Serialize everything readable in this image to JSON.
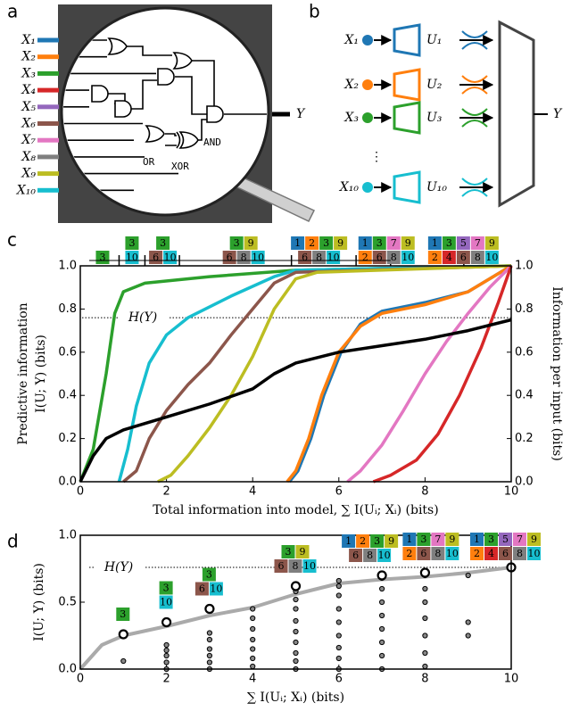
{
  "panel_labels": [
    "a",
    "b",
    "c",
    "d"
  ],
  "inputs": [
    {
      "label": "X₁",
      "color": "#1f77b4"
    },
    {
      "label": "X₂",
      "color": "#ff7f0e"
    },
    {
      "label": "X₃",
      "color": "#2ca02c"
    },
    {
      "label": "X₄",
      "color": "#d62728"
    },
    {
      "label": "X₅",
      "color": "#9467bd"
    },
    {
      "label": "X₆",
      "color": "#8c564b"
    },
    {
      "label": "X₇",
      "color": "#e377c2"
    },
    {
      "label": "X₈",
      "color": "#7f7f7f"
    },
    {
      "label": "X₉",
      "color": "#bcbd22"
    },
    {
      "label": "X₁₀",
      "color": "#17becf"
    }
  ],
  "diagram_a": {
    "gates": {
      "and": "AND",
      "or": "OR",
      "xor": "XOR"
    },
    "output": "Y"
  },
  "diagram_b": {
    "rows": [
      {
        "x": "X₁",
        "u": "U₁",
        "color": "#1f77b4"
      },
      {
        "x": "X₂",
        "u": "U₂",
        "color": "#ff7f0e"
      },
      {
        "x": "X₃",
        "u": "U₃",
        "color": "#2ca02c"
      },
      {
        "x": "X₁₀",
        "u": "U₁₀",
        "color": "#17becf"
      }
    ],
    "ellipsis": "⋮",
    "output": "Y"
  },
  "chart_data": [
    {
      "type": "line",
      "xlabel": "Total information into model, ∑ I(Uᵢ; Xᵢ) (bits)",
      "ylabel": [
        "Predictive information",
        "I(U; Y) (bits)"
      ],
      "y2label": "Information per input (bits)",
      "xlim": [
        0,
        10
      ],
      "ylim": [
        0,
        1
      ],
      "y2lim": [
        0,
        1
      ],
      "xticks": [
        0,
        2,
        4,
        6,
        8,
        10
      ],
      "yticks": [
        {
          "value": 0,
          "label": "0.0"
        },
        0.2,
        0.4,
        0.6,
        0.8,
        {
          "value": 1,
          "label": "1.0"
        }
      ],
      "y2ticks": [
        {
          "value": 0,
          "label": "0.0"
        },
        0.2,
        0.4,
        0.6,
        0.8,
        {
          "value": 1,
          "label": "1.0"
        }
      ],
      "hline": {
        "value": 0.76,
        "label": "H(Y)"
      },
      "series": [
        {
          "color": "#2ca02c",
          "x": [
            0,
            0.3,
            0.6,
            0.8,
            1.0,
            1.5,
            3,
            5,
            10
          ],
          "values": [
            0,
            0.15,
            0.5,
            0.78,
            0.88,
            0.92,
            0.95,
            0.98,
            1
          ]
        },
        {
          "color": "#17becf",
          "x": [
            0.9,
            1.1,
            1.3,
            1.6,
            2,
            2.5,
            3.5,
            4.5,
            5,
            10
          ],
          "values": [
            0,
            0.15,
            0.35,
            0.55,
            0.68,
            0.76,
            0.86,
            0.95,
            0.98,
            1
          ]
        },
        {
          "color": "#8c564b",
          "x": [
            1.0,
            1.3,
            1.6,
            2,
            2.5,
            3,
            3.5,
            4,
            4.5,
            5,
            10
          ],
          "values": [
            0,
            0.05,
            0.2,
            0.33,
            0.45,
            0.55,
            0.68,
            0.8,
            0.92,
            0.97,
            1
          ]
        },
        {
          "color": "#bcbd22",
          "x": [
            1.8,
            2.1,
            2.5,
            3,
            3.5,
            4,
            4.5,
            5,
            5.5,
            10
          ],
          "values": [
            0,
            0.03,
            0.12,
            0.25,
            0.4,
            0.58,
            0.8,
            0.94,
            0.97,
            1
          ]
        },
        {
          "color": "#1f77b4",
          "x": [
            4.85,
            5.05,
            5.35,
            5.65,
            6.05,
            6.5,
            7,
            8,
            9,
            10
          ],
          "values": [
            0,
            0.05,
            0.2,
            0.4,
            0.6,
            0.73,
            0.79,
            0.83,
            0.88,
            1
          ]
        },
        {
          "color": "#ff7f0e",
          "x": [
            4.8,
            5.0,
            5.3,
            5.6,
            6,
            6.5,
            7,
            8,
            9,
            10
          ],
          "values": [
            0,
            0.05,
            0.2,
            0.4,
            0.6,
            0.72,
            0.78,
            0.82,
            0.88,
            1
          ]
        },
        {
          "color": "#e377c2",
          "x": [
            6.2,
            6.5,
            7,
            7.5,
            8,
            8.5,
            9,
            9.5,
            10
          ],
          "values": [
            0,
            0.05,
            0.17,
            0.33,
            0.5,
            0.65,
            0.78,
            0.9,
            1
          ]
        },
        {
          "color": "#d62728",
          "x": [
            6.8,
            7.2,
            7.8,
            8.3,
            8.8,
            9.3,
            9.7,
            10
          ],
          "values": [
            0,
            0.03,
            0.1,
            0.22,
            0.4,
            0.62,
            0.83,
            1
          ]
        },
        {
          "color": "#000000",
          "x": [
            0,
            0.3,
            0.6,
            1,
            2,
            3,
            4,
            4.5,
            5,
            6,
            7,
            8,
            9,
            10
          ],
          "values": [
            0,
            0.12,
            0.2,
            0.24,
            0.3,
            0.36,
            0.43,
            0.5,
            0.55,
            0.6,
            0.63,
            0.66,
            0.7,
            0.75
          ]
        }
      ],
      "badge_groups": [
        {
          "x": 0.9,
          "rows": [
            [
              3
            ]
          ]
        },
        {
          "x": 1.5,
          "rows": [
            [
              3
            ],
            [
              10
            ]
          ]
        },
        {
          "x": 2.3,
          "rows": [
            [
              3
            ],
            [
              6,
              10
            ]
          ]
        },
        {
          "x": 4.9,
          "rows": [
            [
              3,
              9
            ],
            [
              6,
              8,
              10
            ]
          ]
        },
        {
          "x": 6.4,
          "rows": [
            [
              1,
              2,
              3,
              9
            ],
            [
              6,
              8,
              10
            ]
          ]
        },
        {
          "x": 7.2,
          "rows": [
            [
              1,
              3,
              7,
              9
            ],
            [
              2,
              6,
              8,
              10
            ]
          ]
        },
        {
          "x": 8.9,
          "rows": [
            [
              1,
              3,
              5,
              7,
              9
            ],
            [
              2,
              4,
              6,
              8,
              10
            ]
          ]
        }
      ]
    },
    {
      "type": "scatter",
      "xlabel": "∑ I(Uᵢ; Xᵢ) (bits)",
      "ylabel": "I(U; Y) (bits)",
      "xlim": [
        0,
        10
      ],
      "ylim": [
        0,
        1
      ],
      "xticks": [
        0,
        2,
        4,
        6,
        8,
        10
      ],
      "yticks": [
        {
          "value": 0,
          "label": "0.0"
        },
        0.5,
        {
          "value": 1,
          "label": "1.0"
        }
      ],
      "hline": {
        "value": 0.76,
        "label": "H(Y)"
      },
      "series": [
        {
          "marker": "line",
          "color": "#aaaaaa",
          "x": [
            0,
            0.5,
            1,
            2,
            3,
            4,
            5,
            6,
            7,
            8,
            9,
            10
          ],
          "values": [
            0,
            0.18,
            0.25,
            0.32,
            0.4,
            0.46,
            0.56,
            0.64,
            0.67,
            0.69,
            0.72,
            0.76
          ]
        },
        {
          "marker": "dot",
          "color": "#000000",
          "x": [
            1,
            2,
            2,
            2,
            2,
            2,
            3,
            3,
            3,
            3,
            3,
            3,
            4,
            4,
            4,
            4,
            4,
            4,
            4,
            5,
            5,
            5,
            5,
            5,
            5,
            5,
            5,
            5,
            6,
            6,
            6,
            6,
            6,
            6,
            6,
            6,
            6,
            7,
            7,
            7,
            7,
            7,
            7,
            7,
            7,
            8,
            8,
            8,
            8,
            8,
            8,
            8,
            9,
            9,
            9
          ],
          "values": [
            0.06,
            0.0,
            0.05,
            0.1,
            0.14,
            0.18,
            0.0,
            0.05,
            0.1,
            0.15,
            0.22,
            0.27,
            0.02,
            0.08,
            0.15,
            0.22,
            0.3,
            0.38,
            0.45,
            0.0,
            0.06,
            0.12,
            0.2,
            0.28,
            0.36,
            0.45,
            0.52,
            0.58,
            0.0,
            0.08,
            0.16,
            0.25,
            0.35,
            0.45,
            0.55,
            0.62,
            0.66,
            0.0,
            0.1,
            0.2,
            0.3,
            0.4,
            0.5,
            0.6,
            0.68,
            0.02,
            0.12,
            0.25,
            0.38,
            0.5,
            0.6,
            0.7,
            0.25,
            0.35,
            0.7
          ]
        },
        {
          "marker": "ring",
          "color": "#000000",
          "x": [
            1,
            2,
            3,
            5,
            7,
            8,
            10
          ],
          "values": [
            0.26,
            0.35,
            0.45,
            0.62,
            0.7,
            0.72,
            0.76
          ]
        }
      ],
      "badge_groups": [
        {
          "rows": [
            [
              3
            ]
          ]
        },
        {
          "rows": [
            [
              3
            ],
            [
              10
            ]
          ]
        },
        {
          "rows": [
            [
              3
            ],
            [
              6,
              10
            ]
          ]
        },
        {
          "rows": [
            [
              3,
              9
            ],
            [
              6,
              8,
              10
            ]
          ]
        },
        {
          "rows": [
            [
              1,
              2,
              3,
              9
            ],
            [
              6,
              8,
              10
            ]
          ]
        },
        {
          "rows": [
            [
              1,
              3,
              7,
              9
            ],
            [
              2,
              6,
              8,
              10
            ]
          ]
        },
        {
          "rows": [
            [
              1,
              3,
              5,
              7,
              9
            ],
            [
              2,
              4,
              6,
              8,
              10
            ]
          ]
        }
      ]
    }
  ]
}
